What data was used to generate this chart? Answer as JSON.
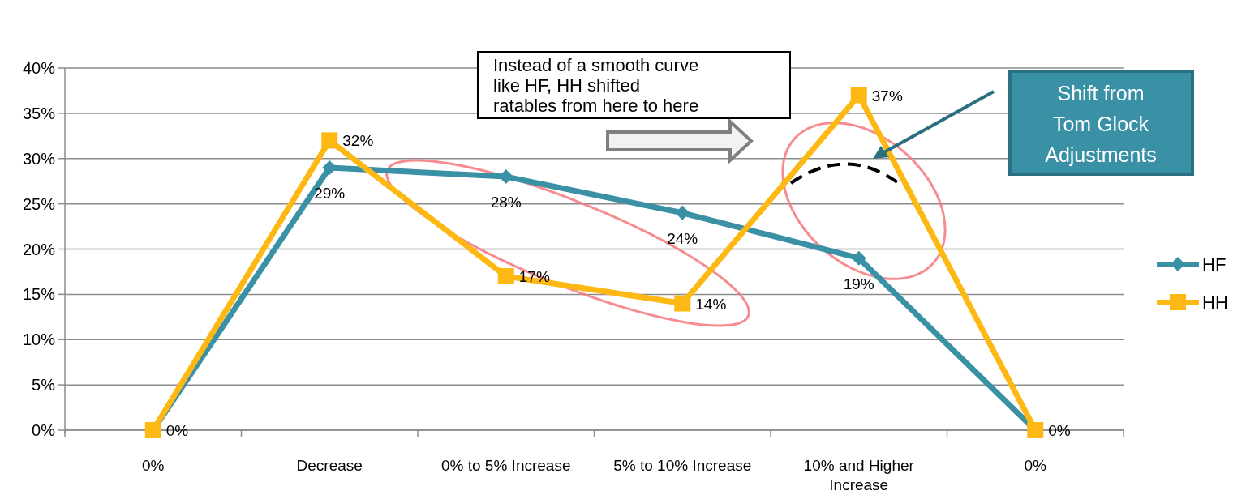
{
  "chart_data": {
    "type": "line",
    "categories": [
      "0%",
      "Decrease",
      "0% to 5% Increase",
      "5% to 10% Increase",
      "10% and Higher Increase",
      "0%"
    ],
    "series": [
      {
        "name": "HF",
        "color": "#3a91a6",
        "marker": "diamond",
        "values": [
          0,
          29,
          28,
          24,
          19,
          0
        ],
        "value_labels": [
          null,
          "29%",
          "28%",
          "24%",
          "19%",
          null
        ]
      },
      {
        "name": "HH",
        "color": "#fdb813",
        "marker": "square",
        "values": [
          0,
          32,
          17,
          14,
          37,
          0
        ],
        "value_labels": [
          "0%",
          "32%",
          "17%",
          "14%",
          "37%",
          "0%"
        ]
      }
    ],
    "ylim": [
      0,
      40
    ],
    "yticks": [
      {
        "value": 0,
        "label": "0%"
      },
      {
        "value": 5,
        "label": "5%"
      },
      {
        "value": 10,
        "label": "10%"
      },
      {
        "value": 15,
        "label": "15%"
      },
      {
        "value": 20,
        "label": "20%"
      },
      {
        "value": 25,
        "label": "25%"
      },
      {
        "value": 30,
        "label": "30%"
      },
      {
        "value": 35,
        "label": "35%"
      },
      {
        "value": 40,
        "label": "40%"
      }
    ],
    "grid": "y",
    "legend": "right",
    "annotations": [
      "Instead of a smooth curve like HF, HH shifted ratables from here to here",
      "Shift from Tom Glock Adjustments"
    ]
  }
}
